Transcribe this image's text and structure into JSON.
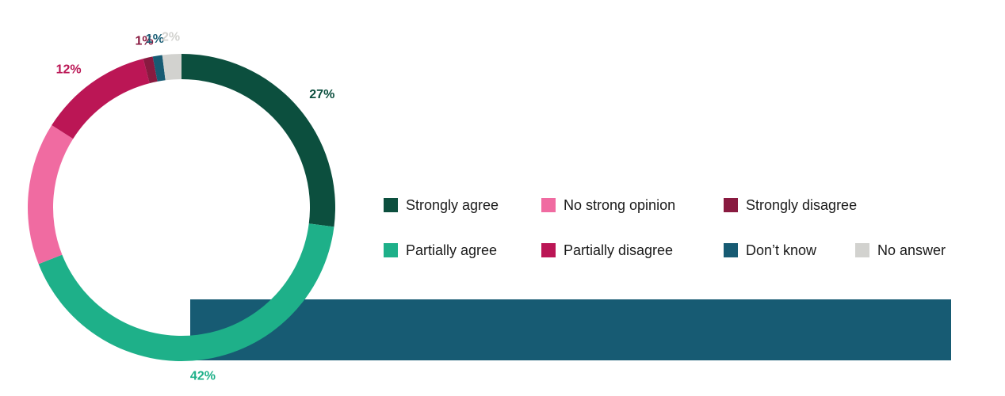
{
  "chart_data": {
    "type": "pie",
    "variant": "donut",
    "categories": [
      "Strongly agree",
      "Partially agree",
      "No strong opinion",
      "Partially disagree",
      "Strongly disagree",
      "Don’t know",
      "No answer"
    ],
    "values": [
      27,
      42,
      15,
      12,
      1,
      1,
      2
    ],
    "value_labels": [
      "27%",
      "42%",
      "",
      "12%",
      "1%",
      "1%",
      "2%"
    ],
    "colors": [
      "#0c4f3e",
      "#1eb089",
      "#f06ba1",
      "#bb1655",
      "#891a40",
      "#175b73",
      "#d2d2cf"
    ],
    "title": "",
    "legend_position": "right"
  },
  "decor": {
    "band_color": "#175b73"
  }
}
